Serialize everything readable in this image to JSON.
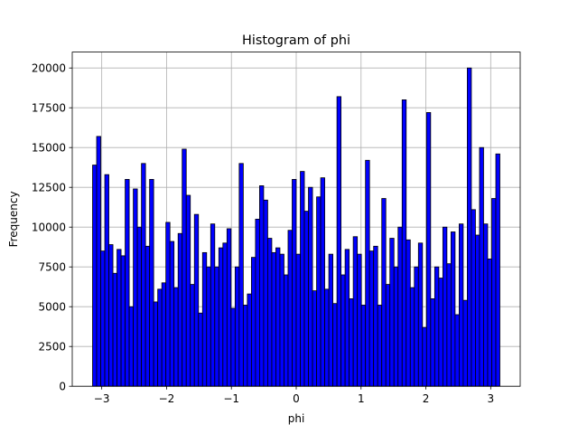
{
  "chart_data": {
    "type": "bar",
    "title": "Histogram of phi",
    "xlabel": "phi",
    "ylabel": "Frequency",
    "xlim": [
      -3.455,
      3.455
    ],
    "ylim": [
      0,
      21000
    ],
    "grid": true,
    "legend": "none",
    "bar_color": "#0000ff",
    "edge_color": "#000000",
    "bin_range": [
      -3.1416,
      3.1416
    ],
    "bin_count": 100,
    "x_ticks": [
      -3,
      -2,
      -1,
      0,
      1,
      2,
      3
    ],
    "x_tick_labels": [
      "−3",
      "−2",
      "−1",
      "0",
      "1",
      "2",
      "3"
    ],
    "y_ticks": [
      0,
      2500,
      5000,
      7500,
      10000,
      12500,
      15000,
      17500,
      20000
    ],
    "y_tick_labels": [
      "0",
      "2500",
      "5000",
      "7500",
      "10000",
      "12500",
      "15000",
      "17500",
      "20000"
    ],
    "values": [
      13900,
      15700,
      8500,
      13300,
      8900,
      7100,
      8600,
      8200,
      13000,
      5000,
      12400,
      10000,
      14000,
      8800,
      13000,
      5300,
      6100,
      6500,
      10300,
      9100,
      6200,
      9600,
      14900,
      12000,
      6400,
      10800,
      4600,
      8400,
      7500,
      10200,
      7500,
      8700,
      9000,
      9900,
      4900,
      7500,
      14000,
      5100,
      5800,
      8100,
      10500,
      12600,
      11700,
      9300,
      8400,
      8700,
      8300,
      7000,
      9800,
      13000,
      8300,
      13500,
      11000,
      12500,
      6000,
      11900,
      13100,
      6100,
      8300,
      5200,
      18200,
      7000,
      8600,
      5500,
      9400,
      8300,
      5100,
      14200,
      8500,
      8800,
      5100,
      11800,
      6400,
      9300,
      7500,
      10000,
      18000,
      9200,
      6200,
      7500,
      9000,
      3700,
      17200,
      5500,
      7500,
      6800,
      10000,
      7700,
      9700,
      4500,
      10200,
      5400,
      20000,
      11100,
      9500,
      15000,
      10200,
      8000,
      11800,
      14600
    ]
  }
}
